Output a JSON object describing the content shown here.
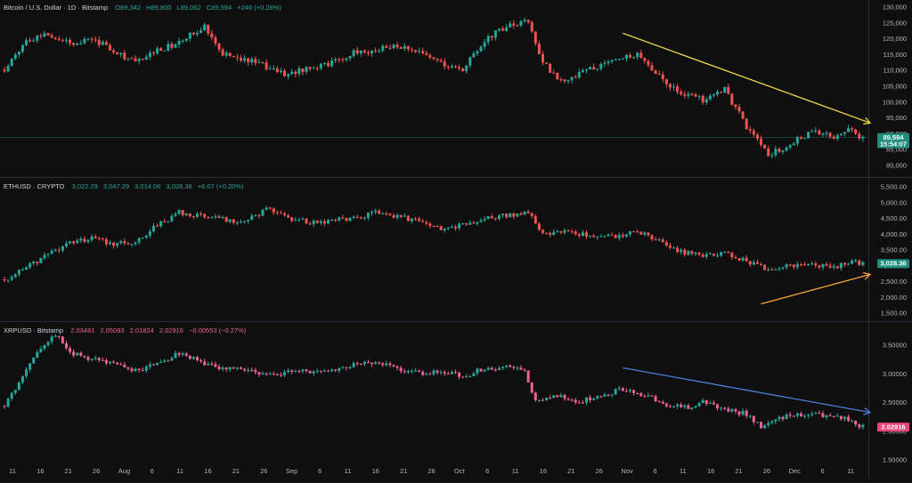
{
  "colors": {
    "background": "#0f0f0f",
    "up": "#26a69a",
    "down": "#ef5350",
    "xrp_up": "#26a69a",
    "xrp_down": "#f06292",
    "btc_trend": "#e8d44d",
    "eth_trend": "#f7a23b",
    "xrp_trend": "#4a7fd8",
    "btc_tag": "#1e8f7e",
    "eth_tag": "#1e8f7e",
    "xrp_tag": "#e8457a"
  },
  "panes": [
    {
      "symbol": "Bitcoin / U.S. Dollar · 1D · Bitstamp",
      "ohlc": {
        "o": "O89,342",
        "h": "H89,800",
        "l": "L89,062",
        "c": "C89,594",
        "chg": "+246 (+0.28%)"
      },
      "price_tag": "89,594",
      "countdown": "15:54:07",
      "y_ticks": [
        "130,000",
        "125,000",
        "120,000",
        "115,000",
        "110,000",
        "105,000",
        "100,000",
        "95,000",
        "90,000",
        "85,000",
        "80,000"
      ]
    },
    {
      "symbol": "ETHUSD · CRYPTO",
      "ohlc": {
        "o": "3,022.29",
        "h": "3,047.29",
        "l": "3,014.06",
        "c": "3,028.36",
        "chg": "+6.07 (+0.20%)"
      },
      "price_tag": "3,028.36",
      "y_ticks": [
        "5,500.00",
        "5,000.00",
        "4,500.00",
        "4,000.00",
        "3,500.00",
        "3,000.00",
        "2,500.00",
        "2,000.00",
        "1,500.00"
      ]
    },
    {
      "symbol": "XRPUSD · Bitstamp",
      "ohlc": {
        "o": "2.03481",
        "h": "2.05093",
        "l": "2.01824",
        "c": "2.02916",
        "chg": "−0.00553 (−0.27%)"
      },
      "price_tag": "2.02916",
      "y_ticks": [
        "3.50000",
        "3.00000",
        "2.50000",
        "2.00000",
        "1.50000"
      ]
    }
  ],
  "x_axis": {
    "labels": [
      "11",
      "16",
      "21",
      "26",
      "Aug",
      "6",
      "11",
      "16",
      "21",
      "26",
      "Sep",
      "6",
      "11",
      "16",
      "21",
      "26",
      "Oct",
      "6",
      "11",
      "16",
      "21",
      "26",
      "Nov",
      "6",
      "11",
      "16",
      "21",
      "26",
      "Dec",
      "6",
      "11"
    ]
  },
  "chart_data": [
    {
      "type": "candlestick",
      "title": "Bitcoin / U.S. Dollar · 1D · Bitstamp",
      "ylim": [
        78000,
        131000
      ],
      "anchors": [
        [
          0,
          110000
        ],
        [
          6,
          119000
        ],
        [
          12,
          121000
        ],
        [
          18,
          118000
        ],
        [
          24,
          119500
        ],
        [
          30,
          116000
        ],
        [
          36,
          112000
        ],
        [
          42,
          116000
        ],
        [
          48,
          118000
        ],
        [
          55,
          123500
        ],
        [
          60,
          115000
        ],
        [
          66,
          113000
        ],
        [
          72,
          111000
        ],
        [
          78,
          108500
        ],
        [
          84,
          111000
        ],
        [
          90,
          112000
        ],
        [
          96,
          115000
        ],
        [
          102,
          116000
        ],
        [
          108,
          117000
        ],
        [
          114,
          115000
        ],
        [
          120,
          112000
        ],
        [
          126,
          110000
        ],
        [
          132,
          119000
        ],
        [
          138,
          123000
        ],
        [
          144,
          124500
        ],
        [
          148,
          112000
        ],
        [
          154,
          106000
        ],
        [
          160,
          110000
        ],
        [
          168,
          113000
        ],
        [
          174,
          115000
        ],
        [
          180,
          108000
        ],
        [
          186,
          103000
        ],
        [
          192,
          101000
        ],
        [
          198,
          104000
        ],
        [
          204,
          93000
        ],
        [
          210,
          84000
        ],
        [
          216,
          88000
        ],
        [
          222,
          91000
        ],
        [
          228,
          90000
        ],
        [
          232,
          92000
        ],
        [
          236,
          89600
        ]
      ],
      "trend_line": [
        [
          170,
          121000
        ],
        [
          238,
          94000
        ]
      ]
    },
    {
      "type": "candlestick",
      "title": "ETHUSD · CRYPTO",
      "ylim": [
        1300,
        5650
      ],
      "anchors": [
        [
          0,
          2550
        ],
        [
          6,
          2900
        ],
        [
          12,
          3300
        ],
        [
          18,
          3700
        ],
        [
          24,
          3800
        ],
        [
          30,
          3650
        ],
        [
          36,
          3700
        ],
        [
          42,
          4200
        ],
        [
          48,
          4600
        ],
        [
          54,
          4500
        ],
        [
          60,
          4400
        ],
        [
          66,
          4300
        ],
        [
          72,
          4700
        ],
        [
          78,
          4400
        ],
        [
          84,
          4300
        ],
        [
          90,
          4350
        ],
        [
          96,
          4400
        ],
        [
          102,
          4600
        ],
        [
          108,
          4450
        ],
        [
          114,
          4350
        ],
        [
          120,
          4050
        ],
        [
          126,
          4200
        ],
        [
          132,
          4450
        ],
        [
          138,
          4500
        ],
        [
          144,
          4600
        ],
        [
          148,
          3900
        ],
        [
          154,
          4050
        ],
        [
          160,
          3900
        ],
        [
          168,
          3850
        ],
        [
          174,
          4000
        ],
        [
          180,
          3750
        ],
        [
          186,
          3400
        ],
        [
          192,
          3250
        ],
        [
          198,
          3400
        ],
        [
          204,
          3100
        ],
        [
          210,
          2850
        ],
        [
          216,
          2950
        ],
        [
          222,
          3000
        ],
        [
          228,
          2900
        ],
        [
          232,
          3100
        ],
        [
          236,
          3030
        ]
      ],
      "trend_line": [
        [
          208,
          1800
        ],
        [
          238,
          2700
        ]
      ]
    },
    {
      "type": "candlestick",
      "title": "XRPUSD · Bitstamp",
      "ylim": [
        1.45,
        3.75
      ],
      "anchors": [
        [
          0,
          2.38
        ],
        [
          6,
          2.95
        ],
        [
          10,
          3.35
        ],
        [
          14,
          3.55
        ],
        [
          18,
          3.25
        ],
        [
          24,
          3.15
        ],
        [
          30,
          3.05
        ],
        [
          36,
          2.95
        ],
        [
          42,
          3.05
        ],
        [
          48,
          3.25
        ],
        [
          54,
          3.1
        ],
        [
          60,
          3.0
        ],
        [
          66,
          2.95
        ],
        [
          72,
          2.9
        ],
        [
          78,
          2.92
        ],
        [
          84,
          2.95
        ],
        [
          90,
          2.98
        ],
        [
          96,
          3.05
        ],
        [
          102,
          3.1
        ],
        [
          108,
          3.0
        ],
        [
          114,
          2.9
        ],
        [
          120,
          2.95
        ],
        [
          126,
          2.85
        ],
        [
          132,
          3.0
        ],
        [
          138,
          3.0
        ],
        [
          143,
          2.95
        ],
        [
          146,
          2.45
        ],
        [
          152,
          2.55
        ],
        [
          158,
          2.45
        ],
        [
          164,
          2.55
        ],
        [
          170,
          2.65
        ],
        [
          176,
          2.55
        ],
        [
          182,
          2.4
        ],
        [
          188,
          2.35
        ],
        [
          192,
          2.45
        ],
        [
          198,
          2.3
        ],
        [
          204,
          2.25
        ],
        [
          208,
          2.05
        ],
        [
          214,
          2.2
        ],
        [
          220,
          2.25
        ],
        [
          228,
          2.2
        ],
        [
          232,
          2.15
        ],
        [
          236,
          2.03
        ]
      ],
      "trend_line": [
        [
          170,
          3.0
        ],
        [
          238,
          2.27
        ]
      ]
    }
  ]
}
